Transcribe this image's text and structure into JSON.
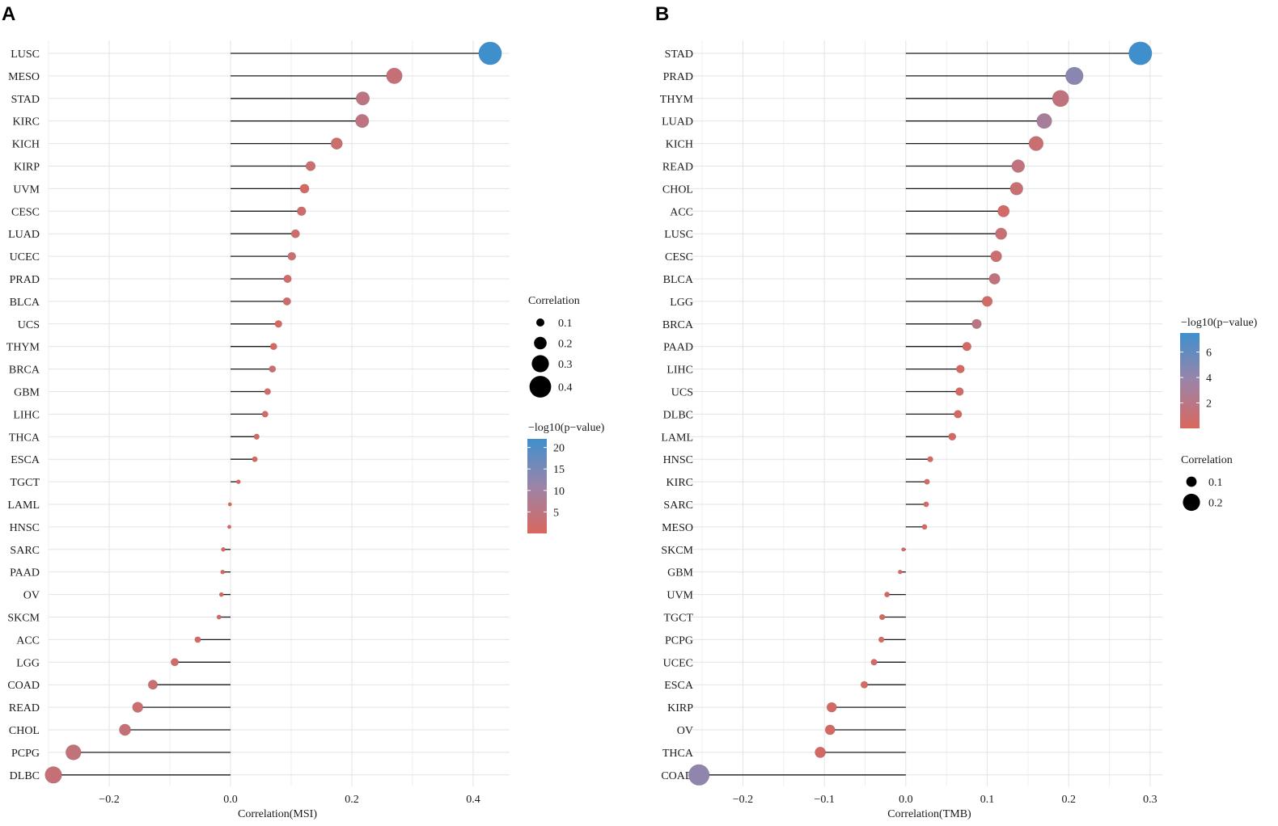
{
  "colors": {
    "low": "#d9675e",
    "mid": "#9b84a8",
    "high": "#3f8fcd"
  },
  "chart_data": [
    {
      "panel": "A",
      "type": "lollipop",
      "xlabel": "Correlation(MSI)",
      "xlim": [
        -0.3,
        0.46
      ],
      "xticks": [
        -0.2,
        0.0,
        0.2,
        0.4
      ],
      "xtick_labels": [
        "−0.2",
        "0.0",
        "0.2",
        "0.4"
      ],
      "size_legend_title": "Correlation",
      "size_legend_values": [
        0.1,
        0.2,
        0.3,
        0.4
      ],
      "size_legend_labels": [
        "0.1",
        "0.2",
        "0.3",
        "0.4"
      ],
      "color_legend_title": "−log10(p−value)",
      "color_range": [
        0,
        22
      ],
      "color_legend_labels": [
        "20",
        "15",
        "10",
        "5"
      ],
      "color_legend_values": [
        20,
        15,
        10,
        5
      ],
      "categories": [
        "LUSC",
        "MESO",
        "STAD",
        "KIRC",
        "KICH",
        "KIRP",
        "UVM",
        "CESC",
        "LUAD",
        "UCEC",
        "PRAD",
        "BLCA",
        "UCS",
        "THYM",
        "BRCA",
        "GBM",
        "LIHC",
        "THCA",
        "ESCA",
        "TGCT",
        "LAML",
        "HNSC",
        "SARC",
        "PAAD",
        "OV",
        "SKCM",
        "ACC",
        "LGG",
        "COAD",
        "READ",
        "CHOL",
        "PCPG",
        "DLBC"
      ],
      "values": [
        0.428,
        0.27,
        0.218,
        0.217,
        0.175,
        0.132,
        0.122,
        0.117,
        0.107,
        0.101,
        0.094,
        0.093,
        0.079,
        0.071,
        0.069,
        0.061,
        0.057,
        0.043,
        0.04,
        0.013,
        -0.001,
        -0.002,
        -0.012,
        -0.013,
        -0.015,
        -0.019,
        -0.054,
        -0.092,
        -0.128,
        -0.153,
        -0.174,
        -0.259,
        -0.292
      ],
      "neglog10p": [
        22.0,
        3.5,
        5.0,
        5.0,
        2.5,
        3.0,
        1.0,
        2.0,
        2.0,
        2.5,
        1.5,
        2.0,
        0.5,
        0.5,
        2.5,
        1.0,
        1.0,
        0.5,
        0.5,
        0.1,
        0.0,
        0.0,
        0.1,
        0.1,
        0.1,
        0.1,
        0.5,
        1.5,
        3.0,
        2.5,
        3.5,
        4.0,
        3.5
      ]
    },
    {
      "panel": "B",
      "type": "lollipop",
      "xlabel": "Correlation(TMB)",
      "xlim": [
        -0.27,
        0.315
      ],
      "xticks": [
        -0.2,
        -0.1,
        0.0,
        0.1,
        0.2,
        0.3
      ],
      "xtick_labels": [
        "−0.2",
        "−0.1",
        "0.0",
        "0.1",
        "0.2",
        "0.3"
      ],
      "size_legend_title": "Correlation",
      "size_legend_values": [
        0.1,
        0.2
      ],
      "size_legend_labels": [
        "0.1",
        "0.2"
      ],
      "color_legend_title": "−log10(p−value)",
      "color_range": [
        0,
        7.5
      ],
      "color_legend_labels": [
        "6",
        "4",
        "2"
      ],
      "color_legend_values": [
        6,
        4,
        2
      ],
      "categories": [
        "STAD",
        "PRAD",
        "THYM",
        "LUAD",
        "KICH",
        "READ",
        "CHOL",
        "ACC",
        "LUSC",
        "CESC",
        "BLCA",
        "LGG",
        "BRCA",
        "PAAD",
        "LIHC",
        "UCS",
        "DLBC",
        "LAML",
        "HNSC",
        "KIRC",
        "SARC",
        "MESO",
        "SKCM",
        "GBM",
        "UVM",
        "TGCT",
        "PCPG",
        "UCEC",
        "ESCA",
        "KIRP",
        "OV",
        "THCA",
        "COAD"
      ],
      "values": [
        0.288,
        0.207,
        0.19,
        0.17,
        0.16,
        0.138,
        0.136,
        0.12,
        0.117,
        0.111,
        0.109,
        0.1,
        0.087,
        0.075,
        0.067,
        0.066,
        0.064,
        0.057,
        0.03,
        0.026,
        0.025,
        0.023,
        -0.003,
        -0.007,
        -0.023,
        -0.029,
        -0.03,
        -0.039,
        -0.051,
        -0.091,
        -0.093,
        -0.105,
        -0.254
      ],
      "neglog10p": [
        7.5,
        4.5,
        1.5,
        3.0,
        1.0,
        1.5,
        1.0,
        0.5,
        1.0,
        0.8,
        1.5,
        0.5,
        1.8,
        0.3,
        0.3,
        0.3,
        0.3,
        0.3,
        0.2,
        0.2,
        0.2,
        0.2,
        0.1,
        0.1,
        0.1,
        0.1,
        0.1,
        0.2,
        0.2,
        0.3,
        0.3,
        0.3,
        4.2
      ]
    }
  ]
}
